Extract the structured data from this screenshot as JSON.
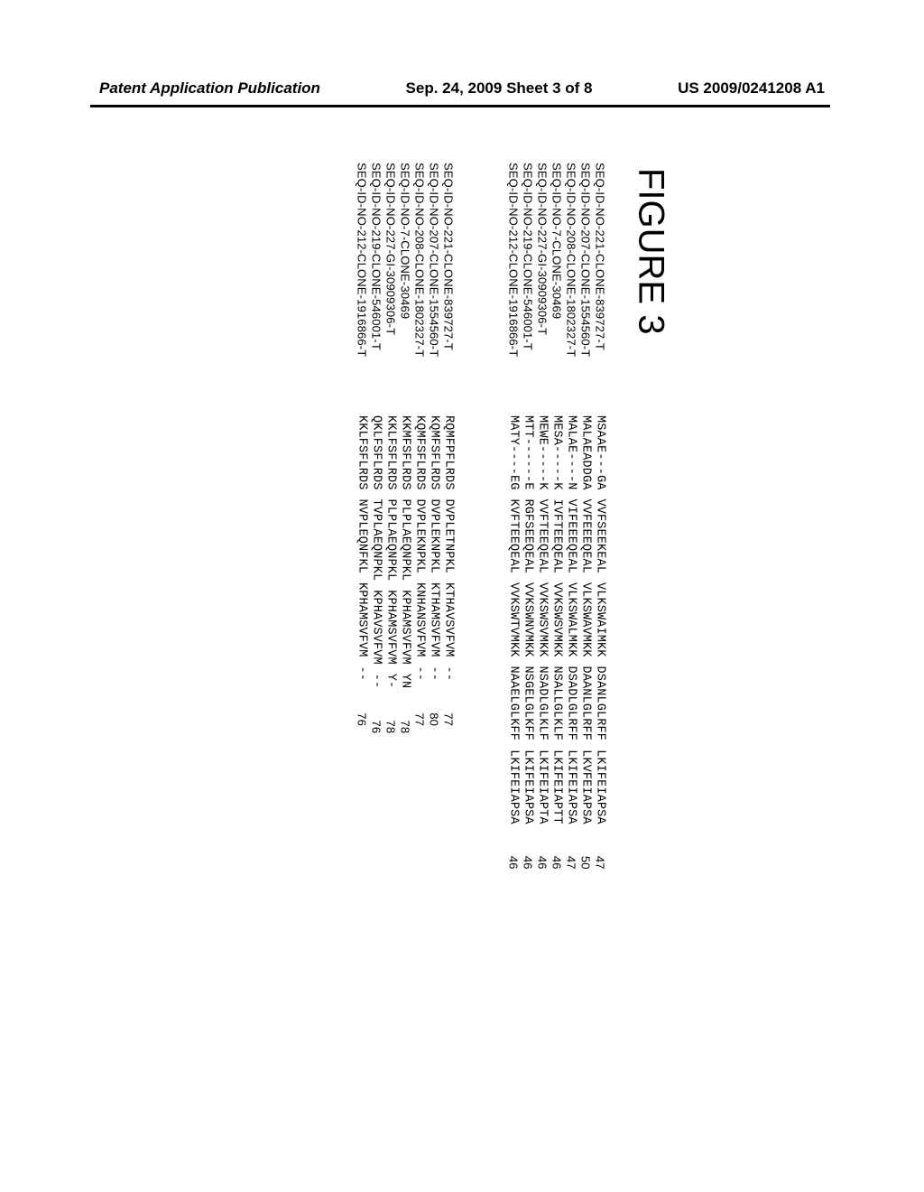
{
  "header": {
    "left": "Patent Application Publication",
    "center": "Sep. 24, 2009  Sheet 3 of 8",
    "right": "US 2009/0241208 A1"
  },
  "figure_label": "FIGURE 3",
  "seq_ids": [
    "SEQ-ID-NO-221-CLONE-839727-T",
    "SEQ-ID-NO-207-CLONE-1554560-T",
    "SEQ-ID-NO-208-CLONE-1802327-T",
    "SEQ-ID-NO-7-CLONE-30469",
    "SEQ-ID-NO-227-GI-30909306-T",
    "SEQ-ID-NO-219-CLONE-546001-T",
    "SEQ-ID-NO-212-CLONE-1916866-T"
  ],
  "block1": {
    "col1": [
      "MSAAE---GA",
      "MALAEADDGA",
      "MALAE----N",
      "MESA-----K",
      "MEWE-----K",
      "MTT------E",
      "MATY----EG"
    ],
    "col2": [
      "VVFSEEKEAL",
      "VVFEEEQEAL",
      "VIFEEEQEAL",
      "IVFTEEQEAL",
      "VVFTEEQEAL",
      "RGFSEEQEAL",
      "KVFTEEQEAL"
    ],
    "col3": [
      "VLKSWAIMKK",
      "VLKSWAVMKK",
      "VLKSWALMKK",
      "VVKSWSVMKK",
      "VVKSWSVMKK",
      "VVKSWNVMKK",
      "VVKSWTVMKK"
    ],
    "col4": [
      "DSANLGLRFF",
      "DAANLGLRFF",
      "DSADLGLRFF",
      "NSALLGLKLF",
      "NSADLGLKLF",
      "NSGELGLKFF",
      "NAAELGLKFF"
    ],
    "col5": [
      "LKIFEIAPSA",
      "LKVFEIAPSA",
      "LKIFEIAPSA",
      "LKIFEIAPTT",
      "LKIFEIAPTA",
      "LKIFEIAPSA",
      "LKIFEIAPSA"
    ],
    "end": [
      "47",
      "50",
      "47",
      "46",
      "46",
      "46",
      "46"
    ]
  },
  "block2": {
    "col1": [
      "RQMFPFLRDS",
      "KQMFSFLRDS",
      "KQMFSFLRDS",
      "KKMFSFLRDS",
      "KKLFSFLRDS",
      "QKLFSFLRDS",
      "KKLFSFLRDS"
    ],
    "col2": [
      "DVPLETNPKL",
      "DVPLEKNPKL",
      "DVPLEKNPKL",
      "PLPLAEQNPKL",
      "PLPLAEQNPKL",
      "TVPLAEQNPKL",
      "NVPLEQNFKL"
    ],
    "col3": [
      "KTHAVSVFVM",
      "KTHAMSVFVM",
      "KNHANSVFVM",
      "KPHAMSVFVM",
      "KPHAMSVFVM",
      "KPHAVSVFVM",
      "KPHAMSVFVM"
    ],
    "col4": [
      "--",
      "--",
      "--",
      "YN",
      "Y-",
      "--",
      "--"
    ],
    "end": [
      "77",
      "80",
      "77",
      "78",
      "78",
      "76",
      "76"
    ]
  },
  "style": {
    "page_bg": "#ffffff",
    "text_color": "#000000",
    "divider_color": "#000000",
    "mono_font": "Courier New",
    "sans_font": "Arial",
    "figure_label_fontsize": 40,
    "header_fontsize": 17,
    "seq_fontsize": 13.5,
    "line_height": 16
  }
}
